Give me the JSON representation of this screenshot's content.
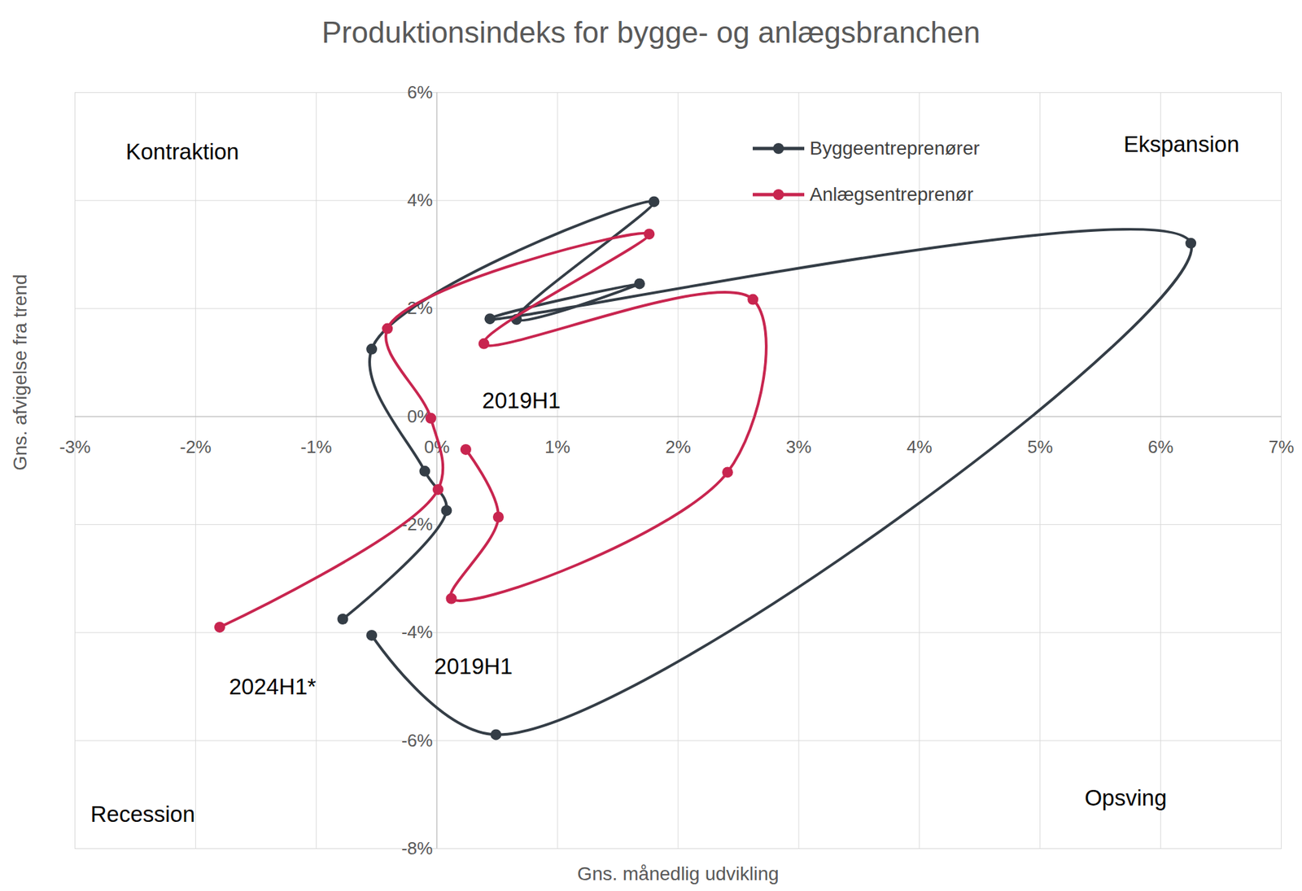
{
  "chart_data": {
    "type": "connected_scatter",
    "title": "Produktionsindeks for bygge- og anlægsbranchen",
    "x_label": "Gns. månedlig udvikling",
    "y_label": "Gns. afvigelse fra trend",
    "xlim": [
      -3,
      7
    ],
    "ylim": [
      -8,
      6
    ],
    "xticks": [
      {
        "value": -3,
        "label": "-3%"
      },
      {
        "value": -2,
        "label": "-2%"
      },
      {
        "value": -1,
        "label": "-1%"
      },
      {
        "value": 0,
        "label": "0%"
      },
      {
        "value": 1,
        "label": "1%"
      },
      {
        "value": 2,
        "label": "2%"
      },
      {
        "value": 3,
        "label": "3%"
      },
      {
        "value": 4,
        "label": "4%"
      },
      {
        "value": 5,
        "label": "5%"
      },
      {
        "value": 6,
        "label": "6%"
      },
      {
        "value": 7,
        "label": "7%"
      }
    ],
    "yticks": [
      {
        "value": -8,
        "label": "-8%"
      },
      {
        "value": -6,
        "label": "-6%"
      },
      {
        "value": -4,
        "label": "-4%"
      },
      {
        "value": -2,
        "label": "-2%"
      },
      {
        "value": 0,
        "label": "0%"
      },
      {
        "value": 2,
        "label": "2%"
      },
      {
        "value": 4,
        "label": "4%"
      },
      {
        "value": 6,
        "label": "6%"
      }
    ],
    "grid": true,
    "legend": "top",
    "series": [
      {
        "name": "Byggeentreprenører",
        "color": "#343d46",
        "marker": "circle",
        "x": [
          -0.54,
          0.49,
          6.25,
          0.44,
          1.68,
          0.66,
          1.8,
          -0.54,
          -0.1,
          0.08,
          -0.78
        ],
        "values": [
          -4.05,
          -5.89,
          3.21,
          1.81,
          2.46,
          1.8,
          3.98,
          1.25,
          -1.01,
          -1.74,
          -3.75
        ]
      },
      {
        "name": "Anlægsentreprenør",
        "color": "#c8254f",
        "marker": "circle",
        "x": [
          0.24,
          0.51,
          0.12,
          2.41,
          2.62,
          0.39,
          1.76,
          -0.41,
          -0.05,
          0.01,
          -1.8
        ],
        "values": [
          -0.61,
          -1.86,
          -3.37,
          -1.03,
          2.17,
          1.35,
          3.38,
          1.63,
          -0.03,
          -1.35,
          -3.9
        ]
      }
    ],
    "quadrant_labels": {
      "top_left": "Kontraktion",
      "top_right": "Ekspansion",
      "bottom_left": "Recession",
      "bottom_right": "Opsving"
    },
    "annotations": [
      {
        "text": "2019H1",
        "series": "Anlægsentreprenør",
        "point": 0
      },
      {
        "text": "2019H1",
        "series": "Byggeentreprenører",
        "point": 0
      },
      {
        "text": "2024H1*",
        "series": "Anlægsentreprenør",
        "point": 10
      }
    ]
  }
}
